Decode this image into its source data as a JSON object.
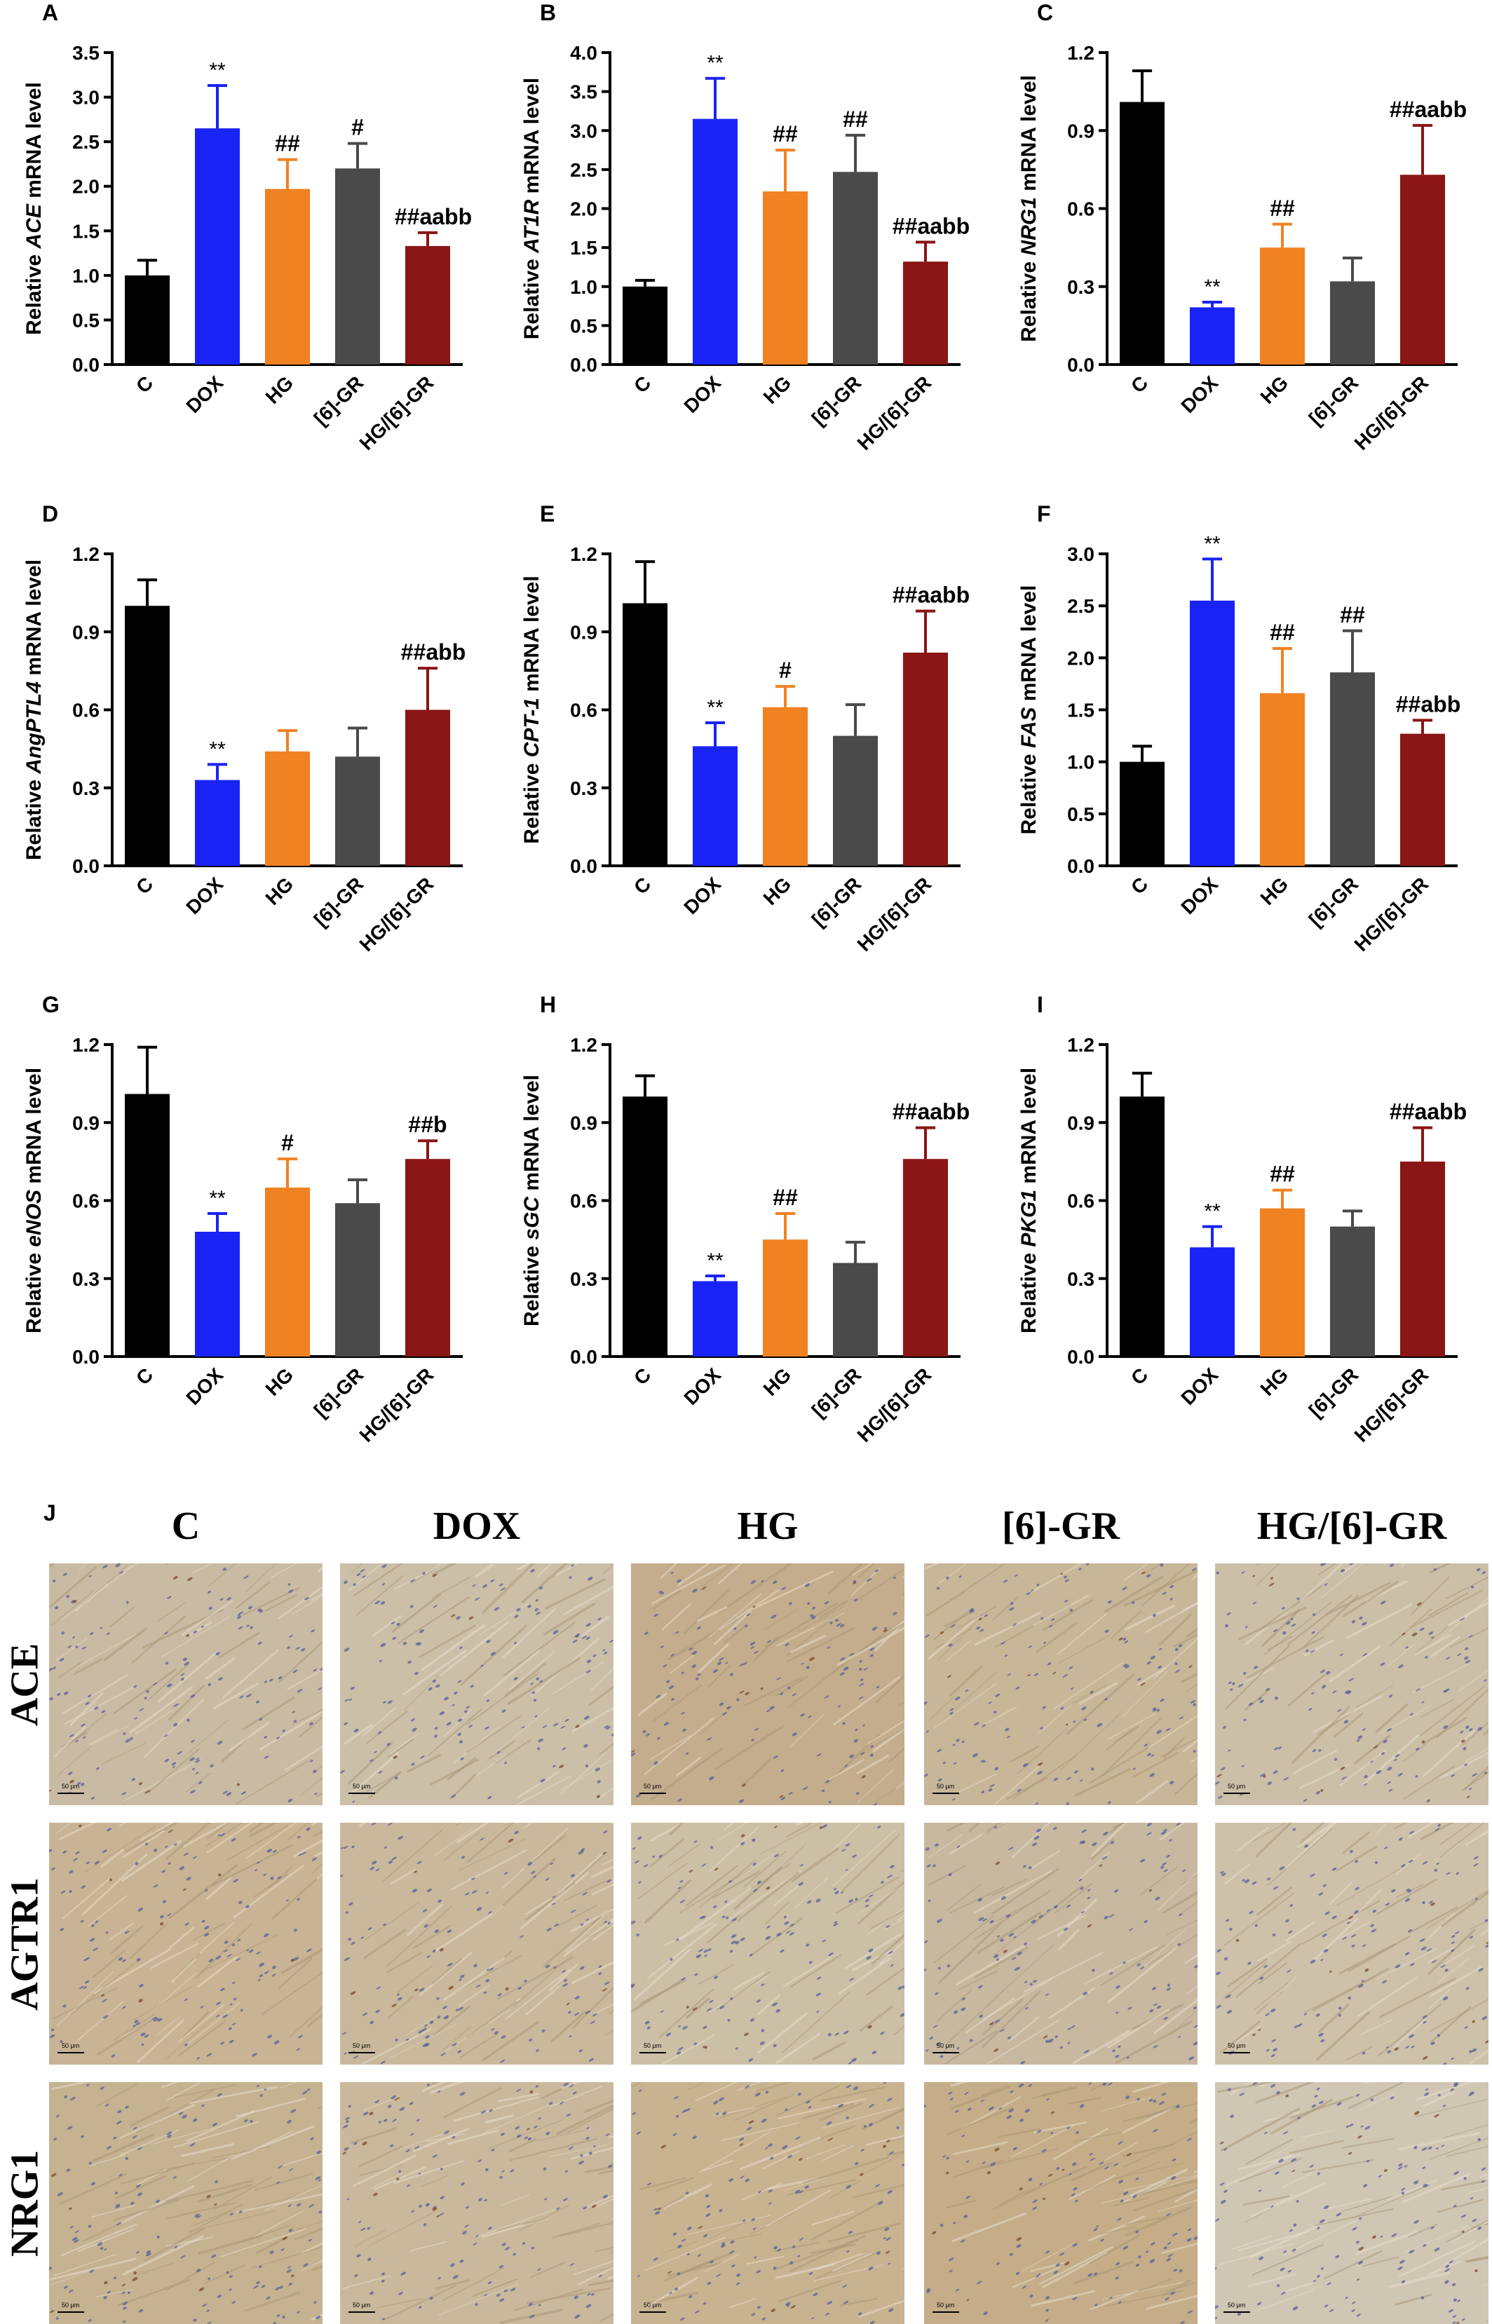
{
  "colors": {
    "C": "#000000",
    "DOX": "#1a23f5",
    "HG": "#f08222",
    "[6]-GR": "#4a4a4a",
    "HG/[6]-GR": "#8a1515"
  },
  "chart_data": [
    {
      "panel": "A",
      "type": "bar",
      "gene": "ACE",
      "categories": [
        "C",
        "DOX",
        "HG",
        "[6]-GR",
        "HG/[6]-GR"
      ],
      "values": [
        1.0,
        2.65,
        1.97,
        2.2,
        1.33
      ],
      "errors": [
        0.17,
        0.48,
        0.33,
        0.28,
        0.15
      ],
      "annotations": [
        "",
        "**",
        "##",
        "#",
        "##aabb"
      ],
      "ylabel_prefix": "Relative ",
      "ylabel_gene": "ACE",
      "ylabel_suffix": " mRNA level",
      "ylim": [
        0,
        3.5
      ],
      "yticks": [
        "0.0",
        "0.5",
        "1.0",
        "1.5",
        "2.0",
        "2.5",
        "3.0",
        "3.5"
      ]
    },
    {
      "panel": "B",
      "type": "bar",
      "gene": "AT1R",
      "categories": [
        "C",
        "DOX",
        "HG",
        "[6]-GR",
        "HG/[6]-GR"
      ],
      "values": [
        1.0,
        3.15,
        2.22,
        2.47,
        1.32
      ],
      "errors": [
        0.08,
        0.52,
        0.53,
        0.47,
        0.25
      ],
      "annotations": [
        "",
        "**",
        "##",
        "##",
        "##aabb"
      ],
      "ylabel_prefix": "Relative ",
      "ylabel_gene": "AT1R",
      "ylabel_suffix": " mRNA level",
      "ylim": [
        0,
        4.0
      ],
      "yticks": [
        "0.0",
        "0.5",
        "1.0",
        "1.5",
        "2.0",
        "2.5",
        "3.0",
        "3.5",
        "4.0"
      ]
    },
    {
      "panel": "C",
      "type": "bar",
      "gene": "NRG1",
      "categories": [
        "C",
        "DOX",
        "HG",
        "[6]-GR",
        "HG/[6]-GR"
      ],
      "values": [
        1.01,
        0.22,
        0.45,
        0.32,
        0.73
      ],
      "errors": [
        0.12,
        0.02,
        0.09,
        0.09,
        0.19
      ],
      "annotations": [
        "",
        "**",
        "##",
        "",
        "##aabb"
      ],
      "ylabel_prefix": "Relative ",
      "ylabel_gene": "NRG1",
      "ylabel_suffix": " mRNA level",
      "ylim": [
        0,
        1.2
      ],
      "yticks": [
        "0.0",
        "0.3",
        "0.6",
        "0.9",
        "1.2"
      ]
    },
    {
      "panel": "D",
      "type": "bar",
      "gene": "AngPTL4",
      "categories": [
        "C",
        "DOX",
        "HG",
        "[6]-GR",
        "HG/[6]-GR"
      ],
      "values": [
        1.0,
        0.33,
        0.44,
        0.42,
        0.6
      ],
      "errors": [
        0.1,
        0.06,
        0.08,
        0.11,
        0.16
      ],
      "annotations": [
        "",
        "**",
        "",
        "",
        "##abb"
      ],
      "ylabel_prefix": "Relative ",
      "ylabel_gene": "AngPTL4",
      "ylabel_suffix": " mRNA level",
      "ylim": [
        0,
        1.2
      ],
      "yticks": [
        "0.0",
        "0.3",
        "0.6",
        "0.9",
        "1.2"
      ]
    },
    {
      "panel": "E",
      "type": "bar",
      "gene": "CPT-1",
      "categories": [
        "C",
        "DOX",
        "HG",
        "[6]-GR",
        "HG/[6]-GR"
      ],
      "values": [
        1.01,
        0.46,
        0.61,
        0.5,
        0.82
      ],
      "errors": [
        0.16,
        0.09,
        0.08,
        0.12,
        0.16
      ],
      "annotations": [
        "",
        "**",
        "#",
        "",
        "##aabb"
      ],
      "ylabel_prefix": "Relative ",
      "ylabel_gene": "CPT-1",
      "ylabel_suffix": " mRNA level",
      "ylim": [
        0,
        1.2
      ],
      "yticks": [
        "0.0",
        "0.3",
        "0.6",
        "0.9",
        "1.2"
      ]
    },
    {
      "panel": "F",
      "type": "bar",
      "gene": "FAS",
      "categories": [
        "C",
        "DOX",
        "HG",
        "[6]-GR",
        "HG/[6]-GR"
      ],
      "values": [
        1.0,
        2.55,
        1.66,
        1.86,
        1.27
      ],
      "errors": [
        0.15,
        0.4,
        0.43,
        0.4,
        0.13
      ],
      "annotations": [
        "",
        "**",
        "##",
        "##",
        "##abb"
      ],
      "ylabel_prefix": "Relative ",
      "ylabel_gene": "FAS",
      "ylabel_suffix": " mRNA level",
      "ylim": [
        0,
        3.0
      ],
      "yticks": [
        "0.0",
        "0.5",
        "1.0",
        "1.5",
        "2.0",
        "2.5",
        "3.0"
      ]
    },
    {
      "panel": "G",
      "type": "bar",
      "gene": "eNOS",
      "categories": [
        "C",
        "DOX",
        "HG",
        "[6]-GR",
        "HG/[6]-GR"
      ],
      "values": [
        1.01,
        0.48,
        0.65,
        0.59,
        0.76
      ],
      "errors": [
        0.18,
        0.07,
        0.11,
        0.09,
        0.07
      ],
      "annotations": [
        "",
        "**",
        "#",
        "",
        "##b"
      ],
      "ylabel_prefix": "Relative ",
      "ylabel_gene": "eNOS",
      "ylabel_suffix": " mRNA level",
      "ylim": [
        0,
        1.2
      ],
      "yticks": [
        "0.0",
        "0.3",
        "0.6",
        "0.9",
        "1.2"
      ]
    },
    {
      "panel": "H",
      "type": "bar",
      "gene": "sGC",
      "categories": [
        "C",
        "DOX",
        "HG",
        "[6]-GR",
        "HG/[6]-GR"
      ],
      "values": [
        1.0,
        0.29,
        0.45,
        0.36,
        0.76
      ],
      "errors": [
        0.08,
        0.02,
        0.1,
        0.08,
        0.12
      ],
      "annotations": [
        "",
        "**",
        "##",
        "",
        "##aabb"
      ],
      "ylabel_prefix": "Relative ",
      "ylabel_gene": "sGC",
      "ylabel_suffix": " mRNA level",
      "ylim": [
        0,
        1.2
      ],
      "yticks": [
        "0.0",
        "0.3",
        "0.6",
        "0.9",
        "1.2"
      ]
    },
    {
      "panel": "I",
      "type": "bar",
      "gene": "PKG1",
      "categories": [
        "C",
        "DOX",
        "HG",
        "[6]-GR",
        "HG/[6]-GR"
      ],
      "values": [
        1.0,
        0.42,
        0.57,
        0.5,
        0.75
      ],
      "errors": [
        0.09,
        0.08,
        0.07,
        0.06,
        0.13
      ],
      "annotations": [
        "",
        "**",
        "##",
        "",
        "##aabb"
      ],
      "ylabel_prefix": "Relative ",
      "ylabel_gene": "PKG1",
      "ylabel_suffix": " mRNA level",
      "ylim": [
        0,
        1.2
      ],
      "yticks": [
        "0.0",
        "0.3",
        "0.6",
        "0.9",
        "1.2"
      ]
    }
  ],
  "micrographs": {
    "panel": "J",
    "columns": [
      "C",
      "DOX",
      "HG",
      "[6]-GR",
      "HG/[6]-GR"
    ],
    "rows": [
      "ACE",
      "AGTR1",
      "NRG1"
    ],
    "scale_label": "50 μm"
  }
}
